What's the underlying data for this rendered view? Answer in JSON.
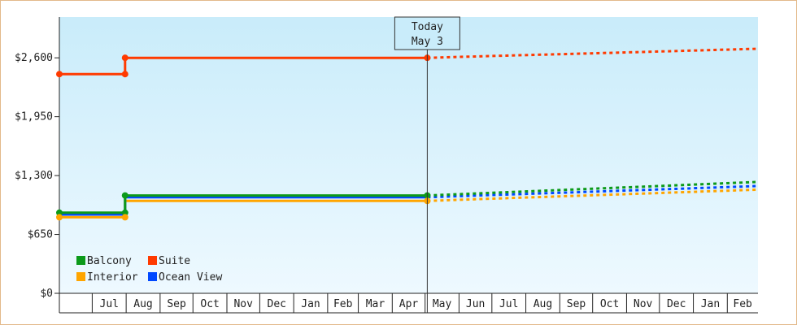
{
  "chart_data": {
    "type": "line",
    "style": "step line with dotted projection after today",
    "today_marker": {
      "lines": [
        "Today",
        "May 3"
      ],
      "x": "2025-05-03"
    },
    "y_axis": {
      "ticks": [
        0,
        650,
        1300,
        1950,
        2600
      ],
      "tick_labels": [
        "$0",
        "$650",
        "$1,300",
        "$1,950",
        "$2,600"
      ],
      "ylim": [
        0,
        3050
      ]
    },
    "x_axis": {
      "xlim": [
        "2024-06-01",
        "2026-03-01"
      ],
      "month_labels": [
        "Jul",
        "Aug",
        "Sep",
        "Oct",
        "Nov",
        "Dec",
        "Jan",
        "Feb",
        "Mar",
        "Apr",
        "May",
        "Jun",
        "Jul",
        "Aug",
        "Sep",
        "Oct",
        "Nov",
        "Dec",
        "Jan",
        "Feb"
      ],
      "month_starts": [
        "2024-07-01",
        "2024-08-01",
        "2024-09-01",
        "2024-10-01",
        "2024-11-01",
        "2024-12-01",
        "2025-01-01",
        "2025-02-01",
        "2025-03-01",
        "2025-04-01",
        "2025-05-01",
        "2025-06-01",
        "2025-07-01",
        "2025-08-01",
        "2025-09-01",
        "2025-10-01",
        "2025-11-01",
        "2025-12-01",
        "2026-01-01",
        "2026-02-01"
      ]
    },
    "legend": {
      "placement": "bottom-left",
      "columns": 2
    },
    "grid": false,
    "background_gradient": [
      "#c9ecfa",
      "#eef9ff"
    ],
    "series": [
      {
        "name": "Suite",
        "color": "#ff3a00",
        "points": [
          [
            "2024-06-01",
            2420
          ],
          [
            "2024-07-31",
            2420
          ],
          [
            "2024-07-31",
            2600
          ],
          [
            "2025-05-03",
            2600
          ]
        ],
        "projection": [
          [
            "2025-05-03",
            2600
          ],
          [
            "2025-07-01",
            2620
          ],
          [
            "2025-09-01",
            2640
          ],
          [
            "2025-11-01",
            2660
          ],
          [
            "2026-01-01",
            2680
          ],
          [
            "2026-03-01",
            2700
          ]
        ]
      },
      {
        "name": "Balcony",
        "color": "#0c9a1a",
        "points": [
          [
            "2024-06-01",
            890
          ],
          [
            "2024-07-31",
            890
          ],
          [
            "2024-07-31",
            1080
          ],
          [
            "2025-05-03",
            1080
          ]
        ],
        "projection": [
          [
            "2025-05-03",
            1080
          ],
          [
            "2025-07-01",
            1110
          ],
          [
            "2025-09-01",
            1140
          ],
          [
            "2025-11-01",
            1170
          ],
          [
            "2026-01-01",
            1200
          ],
          [
            "2026-03-01",
            1230
          ]
        ]
      },
      {
        "name": "Ocean View",
        "color": "#0048ff",
        "points": [
          [
            "2024-06-01",
            870
          ],
          [
            "2024-07-31",
            870
          ],
          [
            "2024-07-31",
            1060
          ],
          [
            "2025-05-03",
            1060
          ]
        ],
        "projection": [
          [
            "2025-05-03",
            1060
          ],
          [
            "2025-07-01",
            1085
          ],
          [
            "2025-09-01",
            1110
          ],
          [
            "2025-11-01",
            1135
          ],
          [
            "2026-01-01",
            1160
          ],
          [
            "2026-03-01",
            1185
          ]
        ]
      },
      {
        "name": "Interior",
        "color": "#ffa500",
        "points": [
          [
            "2024-06-01",
            840
          ],
          [
            "2024-07-31",
            840
          ],
          [
            "2024-07-31",
            1020
          ],
          [
            "2025-05-03",
            1020
          ]
        ],
        "projection": [
          [
            "2025-05-03",
            1020
          ],
          [
            "2025-07-01",
            1045
          ],
          [
            "2025-09-01",
            1070
          ],
          [
            "2025-11-01",
            1095
          ],
          [
            "2026-01-01",
            1120
          ],
          [
            "2026-03-01",
            1145
          ]
        ]
      }
    ],
    "markers": [
      {
        "series": "Suite",
        "points": [
          [
            "2024-06-01",
            2420
          ],
          [
            "2024-07-31",
            2420
          ],
          [
            "2024-07-31",
            2600
          ],
          [
            "2025-05-03",
            2600
          ]
        ]
      },
      {
        "series": "Balcony",
        "points": [
          [
            "2024-06-01",
            890
          ],
          [
            "2024-07-31",
            890
          ],
          [
            "2024-07-31",
            1080
          ],
          [
            "2025-05-03",
            1080
          ]
        ]
      },
      {
        "series": "Interior",
        "points": [
          [
            "2024-06-01",
            840
          ],
          [
            "2024-07-31",
            840
          ],
          [
            "2025-05-03",
            1020
          ]
        ]
      }
    ],
    "legend_items": [
      {
        "name": "Balcony",
        "color": "#0c9a1a"
      },
      {
        "name": "Suite",
        "color": "#ff3a00"
      },
      {
        "name": "Interior",
        "color": "#ffa500"
      },
      {
        "name": "Ocean View",
        "color": "#0048ff"
      }
    ]
  }
}
